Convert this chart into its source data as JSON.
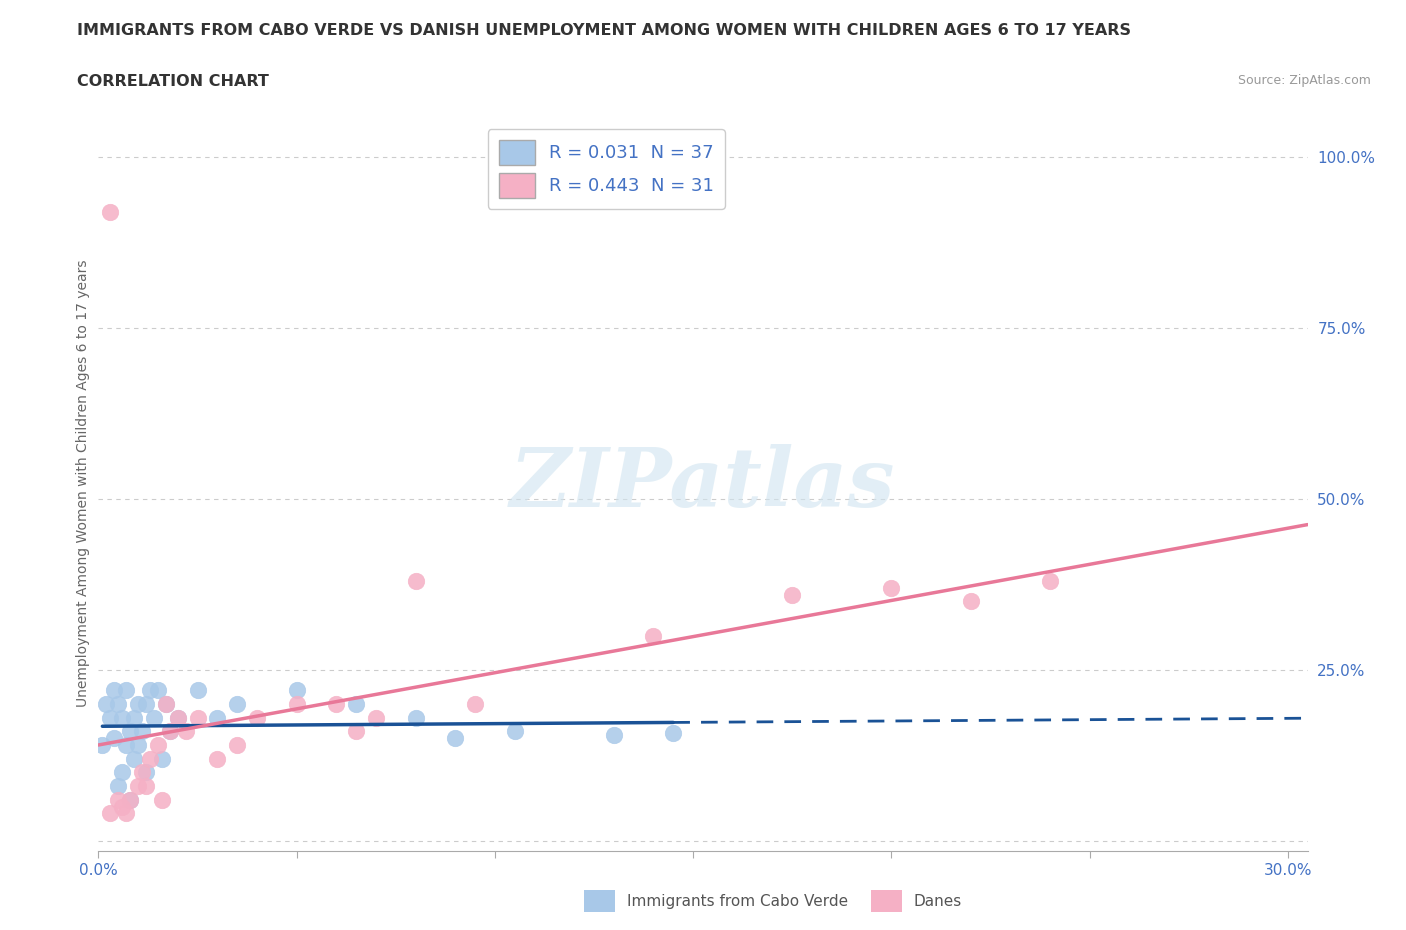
{
  "title": "IMMIGRANTS FROM CABO VERDE VS DANISH UNEMPLOYMENT AMONG WOMEN WITH CHILDREN AGES 6 TO 17 YEARS",
  "subtitle": "CORRELATION CHART",
  "source": "Source: ZipAtlas.com",
  "ylabel": "Unemployment Among Women with Children Ages 6 to 17 years",
  "xlim": [
    0.0,
    0.305
  ],
  "ylim": [
    -0.015,
    1.06
  ],
  "x_ticks": [
    0.0,
    0.05,
    0.1,
    0.15,
    0.2,
    0.25,
    0.3
  ],
  "y_ticks": [
    0.0,
    0.25,
    0.5,
    0.75,
    1.0
  ],
  "r_blue": 0.031,
  "n_blue": 37,
  "r_pink": 0.443,
  "n_pink": 31,
  "blue_color": "#a8c8e8",
  "pink_color": "#f5b0c5",
  "line_blue_color": "#1a5296",
  "line_pink_color": "#e87898",
  "legend_label_blue": "Immigrants from Cabo Verde",
  "legend_label_pink": "Danes",
  "blue_scatter_x": [
    0.001,
    0.002,
    0.003,
    0.004,
    0.004,
    0.005,
    0.005,
    0.006,
    0.006,
    0.007,
    0.007,
    0.008,
    0.008,
    0.009,
    0.009,
    0.01,
    0.01,
    0.011,
    0.012,
    0.012,
    0.013,
    0.014,
    0.015,
    0.016,
    0.017,
    0.018,
    0.02,
    0.025,
    0.03,
    0.035,
    0.05,
    0.065,
    0.08,
    0.09,
    0.105,
    0.13,
    0.145
  ],
  "blue_scatter_y": [
    0.14,
    0.2,
    0.18,
    0.15,
    0.22,
    0.08,
    0.2,
    0.1,
    0.18,
    0.22,
    0.14,
    0.16,
    0.06,
    0.18,
    0.12,
    0.2,
    0.14,
    0.16,
    0.2,
    0.1,
    0.22,
    0.18,
    0.22,
    0.12,
    0.2,
    0.16,
    0.18,
    0.22,
    0.18,
    0.2,
    0.22,
    0.2,
    0.18,
    0.15,
    0.16,
    0.155,
    0.158
  ],
  "pink_scatter_x": [
    0.003,
    0.005,
    0.006,
    0.007,
    0.008,
    0.01,
    0.011,
    0.012,
    0.013,
    0.015,
    0.016,
    0.017,
    0.018,
    0.02,
    0.022,
    0.025,
    0.03,
    0.035,
    0.04,
    0.05,
    0.06,
    0.065,
    0.07,
    0.08,
    0.095,
    0.14,
    0.175,
    0.2,
    0.22,
    0.24,
    0.003
  ],
  "pink_scatter_y": [
    0.04,
    0.06,
    0.05,
    0.04,
    0.06,
    0.08,
    0.1,
    0.08,
    0.12,
    0.14,
    0.06,
    0.2,
    0.16,
    0.18,
    0.16,
    0.18,
    0.12,
    0.14,
    0.18,
    0.2,
    0.2,
    0.16,
    0.18,
    0.38,
    0.2,
    0.3,
    0.36,
    0.37,
    0.35,
    0.38,
    0.92
  ],
  "blue_solid_xend": 0.145,
  "watermark_text": "ZIPatlas",
  "background_color": "#ffffff",
  "grid_color": "#cccccc"
}
